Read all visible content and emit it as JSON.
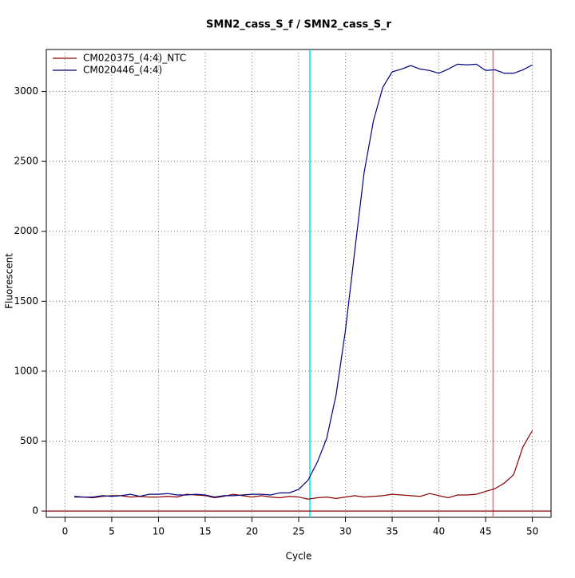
{
  "chart_data": {
    "type": "line",
    "title": "SMN2_cass_S_f / SMN2_cass_S_r",
    "x_label": "Cycle",
    "y_label": "Fluorescent",
    "x": [
      1,
      2,
      3,
      4,
      5,
      6,
      7,
      8,
      9,
      10,
      11,
      12,
      13,
      14,
      15,
      16,
      17,
      18,
      19,
      20,
      21,
      22,
      23,
      24,
      25,
      26,
      27,
      28,
      29,
      30,
      31,
      32,
      33,
      34,
      35,
      36,
      37,
      38,
      39,
      40,
      41,
      42,
      43,
      44,
      45,
      46,
      47,
      48,
      49,
      50
    ],
    "series": [
      {
        "name": "CM020375_(4:4)_NTC",
        "color": "#8b0000",
        "values": [
          100,
          100,
          95,
          105,
          110,
          110,
          100,
          105,
          100,
          100,
          105,
          100,
          120,
          115,
          110,
          95,
          105,
          120,
          110,
          100,
          110,
          100,
          95,
          105,
          100,
          85,
          95,
          100,
          90,
          100,
          110,
          100,
          105,
          110,
          120,
          115,
          110,
          105,
          125,
          110,
          95,
          115,
          115,
          120,
          140,
          160,
          200,
          260,
          460,
          575
        ]
      },
      {
        "name": "CM020446_(4:4)",
        "color": "#000080",
        "values": [
          105,
          100,
          100,
          110,
          105,
          110,
          120,
          105,
          120,
          120,
          125,
          115,
          115,
          120,
          115,
          100,
          110,
          110,
          115,
          120,
          120,
          115,
          130,
          130,
          155,
          220,
          350,
          520,
          830,
          1290,
          1860,
          2420,
          2790,
          3030,
          3140,
          3160,
          3185,
          3160,
          3150,
          3130,
          3160,
          3195,
          3190,
          3195,
          3150,
          3155,
          3130,
          3130,
          3155,
          3190
        ]
      }
    ],
    "xlim": [
      -2,
      52
    ],
    "ylim": [
      -45,
      3300
    ],
    "xticks": [
      0,
      5,
      10,
      15,
      20,
      25,
      30,
      35,
      40,
      45,
      50
    ],
    "yticks": [
      0,
      500,
      1000,
      1500,
      2000,
      2500,
      3000
    ],
    "grid": true,
    "legend": "top-left",
    "vlines": [
      {
        "x": 26.2,
        "color": "#00e5ee"
      },
      {
        "x": 45.8,
        "color": "#e8747c"
      }
    ],
    "hlines": [
      {
        "y": 0,
        "color": "#8b0000"
      }
    ]
  }
}
